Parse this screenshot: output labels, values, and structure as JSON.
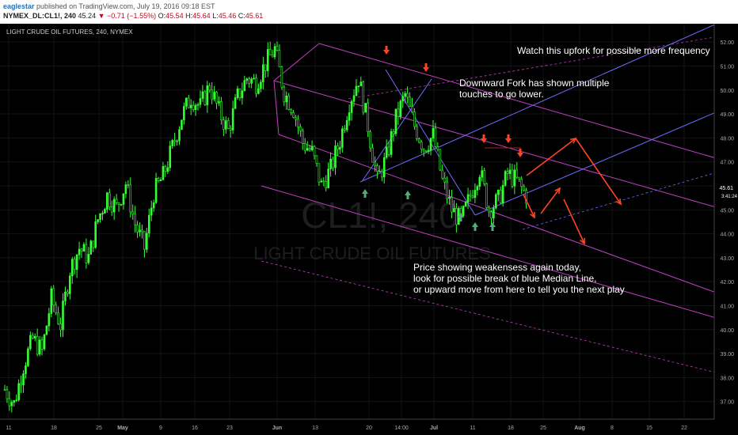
{
  "header": {
    "author": "eaglestar",
    "published": "published on TradingView.com, July 19, 2016 09:18 EST",
    "symbol": "NYMEX_DL:CL1!, 240",
    "last": "45.24",
    "change": "−0.71 (−1.55%)",
    "open_label": "O:",
    "open": "45.54",
    "high_label": "H:",
    "high": "45.64",
    "low_label": "L:",
    "low": "45.46",
    "close_label": "C:",
    "close": "45.61"
  },
  "chart_title": "LIGHT CRUDE OIL FUTURES, 240, NYMEX",
  "watermark": {
    "symbol": "CL1!, 240",
    "name": "LIGHT CRUDE OIL FUTURES"
  },
  "annotations": {
    "upfork": "Watch this upfork for possible more frequency",
    "fork_line1": "Downward Fork has shown multiple",
    "fork_line2": "touches to go lower.",
    "price_line1": "Price showing weakensess again today,",
    "price_line2": "look for possible break of blue Median Line,",
    "price_line3": "or upward move from here to tell you the next play"
  },
  "price_badges": {
    "current": "45.61",
    "countdown": "3:41:24"
  },
  "colors": {
    "background": "#000000",
    "candle_up": "#33ff33",
    "candle_down": "#000000",
    "fork_magenta": "#c040c0",
    "median_blue": "#6c6cff",
    "arrow_red": "#ff4422",
    "arrow_green": "#55aa77"
  },
  "chart_data": {
    "type": "candlestick",
    "title": "LIGHT CRUDE OIL FUTURES, 240, NYMEX",
    "ylim": [
      36,
      52.5
    ],
    "y_ticks": [
      "36.00",
      "37.00",
      "38.00",
      "39.00",
      "40.00",
      "41.00",
      "42.00",
      "43.00",
      "44.00",
      "45.00",
      "46.00",
      "47.00",
      "48.00",
      "49.00",
      "50.00",
      "51.00",
      "52.00"
    ],
    "x_ticks": [
      "11",
      "18",
      "25",
      "May",
      "9",
      "16",
      "23",
      "Jun",
      "13",
      "20",
      "14:00",
      "Jul",
      "11",
      "18",
      "25",
      "Aug",
      "8",
      "15",
      "22"
    ],
    "price_path": [
      [
        0,
        37.5
      ],
      [
        4,
        36.9
      ],
      [
        8,
        38.5
      ],
      [
        12,
        39.6
      ],
      [
        16,
        39.1
      ],
      [
        20,
        41.3
      ],
      [
        24,
        40.2
      ],
      [
        28,
        42.5
      ],
      [
        32,
        43.4
      ],
      [
        36,
        43.0
      ],
      [
        40,
        44.6
      ],
      [
        44,
        45.6
      ],
      [
        48,
        45.1
      ],
      [
        52,
        46.1
      ],
      [
        56,
        44.4
      ],
      [
        60,
        43.4
      ],
      [
        64,
        45.7
      ],
      [
        68,
        46.4
      ],
      [
        72,
        47.6
      ],
      [
        76,
        48.9
      ],
      [
        80,
        49.7
      ],
      [
        84,
        49.3
      ],
      [
        88,
        50.2
      ],
      [
        92,
        49.1
      ],
      [
        96,
        48.3
      ],
      [
        100,
        49.7
      ],
      [
        104,
        50.5
      ],
      [
        108,
        50.3
      ],
      [
        112,
        51.1
      ],
      [
        116,
        51.7
      ],
      [
        120,
        49.9
      ],
      [
        124,
        49.2
      ],
      [
        128,
        47.8
      ],
      [
        132,
        47.4
      ],
      [
        136,
        46.0
      ],
      [
        140,
        46.7
      ],
      [
        144,
        47.9
      ],
      [
        148,
        49.5
      ],
      [
        152,
        50.5
      ],
      [
        156,
        48.5
      ],
      [
        160,
        46.2
      ],
      [
        164,
        47.2
      ],
      [
        168,
        48.8
      ],
      [
        172,
        49.8
      ],
      [
        176,
        48.5
      ],
      [
        180,
        47.6
      ],
      [
        184,
        48.1
      ],
      [
        188,
        46.2
      ],
      [
        192,
        45.0
      ],
      [
        196,
        44.5
      ],
      [
        200,
        45.6
      ],
      [
        204,
        46.7
      ],
      [
        208,
        45.0
      ],
      [
        212,
        45.4
      ],
      [
        216,
        46.5
      ],
      [
        220,
        46.2
      ],
      [
        224,
        45.6
      ]
    ],
    "annotation_arrows": {
      "red_down_above": [
        [
          0,
          50.5
        ],
        [
          0,
          47.4
        ]
      ],
      "green_up_below": [],
      "projected_paths": "up 47.4 then down 45.1 / down 44.5 then up 45.7 then down 43.2"
    }
  }
}
